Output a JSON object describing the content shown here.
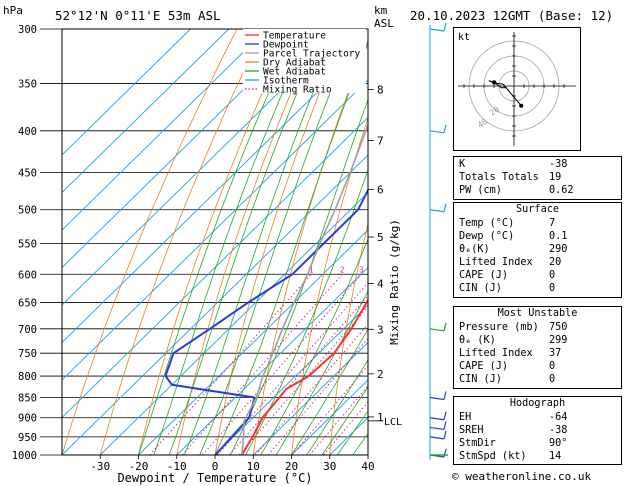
{
  "header": {
    "p_unit": "hPa",
    "station": "52°12'N  0°11'E  53m  ASL",
    "alt_unit_top": "km",
    "alt_unit_bottom": "ASL",
    "datetime": "20.10.2023  12GMT  (Base: 12)"
  },
  "chart_data": {
    "type": "line",
    "xlabel": "Dewpoint / Temperature (°C)",
    "ylabel": "hPa",
    "right_label": "Mixing Ratio (g/kg)",
    "xlim": [
      -40,
      40
    ],
    "ylim": [
      1000,
      300
    ],
    "x_ticks": [
      "-30",
      "-20",
      "-10",
      "0",
      "10",
      "20",
      "30",
      "40"
    ],
    "p_levels": [
      300,
      350,
      400,
      450,
      500,
      550,
      600,
      650,
      700,
      750,
      800,
      850,
      900,
      950,
      1000
    ],
    "p_labels": [
      "300",
      "350",
      "400",
      "450",
      "500",
      "550",
      "600",
      "650",
      "700",
      "750",
      "800",
      "850",
      "900",
      "950",
      "1000"
    ],
    "km_ticks": [
      {
        "km": "1",
        "p": 898
      },
      {
        "km": "2",
        "p": 795
      },
      {
        "km": "3",
        "p": 701
      },
      {
        "km": "4",
        "p": 616
      },
      {
        "km": "5",
        "p": 540
      },
      {
        "km": "6",
        "p": 472
      },
      {
        "km": "7",
        "p": 411
      },
      {
        "km": "8",
        "p": 356
      }
    ],
    "lcl_label": "LCL",
    "lcl_p": 908,
    "mixing_ratio_labels": [
      "1",
      "2",
      "3",
      "4",
      "5",
      "6",
      "8",
      "10",
      "15",
      "20",
      "25"
    ],
    "mixing_ratio_values": [
      1,
      2,
      3,
      4,
      5,
      6,
      8,
      10,
      15,
      20,
      25
    ],
    "mixing_ratio_label_p": 600,
    "legend": [
      "Temperature",
      "Dewpoint",
      "Parcel Trajectory",
      "Dry Adiabat",
      "Wet Adiabat",
      "Isotherm",
      "Mixing Ratio"
    ],
    "legend_placement": "top-right",
    "colors": {
      "temperature": "#ff3030",
      "dewpoint": "#2a3bd8",
      "parcel": "#a0a0a0",
      "dry_adiabat": "#e8821e",
      "wet_adiabat": "#26a626",
      "isotherm": "#1aa5e0",
      "mixing_ratio": "#e0108a"
    },
    "series": [
      {
        "name": "Temperature",
        "points": [
          [
            7,
            1000
          ],
          [
            5,
            950
          ],
          [
            2.5,
            900
          ],
          [
            1.5,
            850
          ],
          [
            1,
            830
          ],
          [
            3.5,
            800
          ],
          [
            4,
            750
          ],
          [
            2,
            700
          ],
          [
            -1,
            650
          ],
          [
            -4.5,
            600
          ],
          [
            -8.5,
            550
          ],
          [
            -13.5,
            500
          ],
          [
            -19.5,
            450
          ],
          [
            -26,
            400
          ],
          [
            -33,
            350
          ],
          [
            -41,
            300
          ]
        ]
      },
      {
        "name": "Dewpoint",
        "points": [
          [
            0.1,
            1000
          ],
          [
            -0.5,
            950
          ],
          [
            -1,
            900
          ],
          [
            -5,
            850
          ],
          [
            -30,
            820
          ],
          [
            -34,
            800
          ],
          [
            -38,
            750
          ],
          [
            -35,
            700
          ],
          [
            -32,
            650
          ],
          [
            -28,
            600
          ],
          [
            -28,
            550
          ],
          [
            -28,
            500
          ],
          [
            -33,
            450
          ],
          [
            -44,
            400
          ],
          [
            -42,
            350
          ],
          [
            -45,
            300
          ]
        ]
      },
      {
        "name": "Parcel Trajectory",
        "points": [
          [
            7,
            1000
          ],
          [
            2.6,
            950
          ],
          [
            -1.5,
            908
          ],
          [
            -4.5,
            850
          ],
          [
            -8.5,
            800
          ],
          [
            -12,
            750
          ],
          [
            -16,
            700
          ],
          [
            -20,
            650
          ],
          [
            -24,
            600
          ],
          [
            -29,
            550
          ],
          [
            -34,
            500
          ],
          [
            -40,
            450
          ],
          [
            -47,
            400
          ],
          [
            -55,
            350
          ],
          [
            -64,
            300
          ]
        ]
      }
    ]
  },
  "hodograph": {
    "label": "kt",
    "ring_labels": [
      "20",
      "40"
    ],
    "trace_kt": [
      [
        -8,
        -2
      ],
      [
        -14,
        -2
      ],
      [
        -22,
        4
      ],
      [
        -28,
        6
      ],
      [
        -26,
        5
      ],
      [
        -20,
        3
      ],
      [
        -12,
        2
      ]
    ],
    "mean_kt": [
      8,
      -22
    ]
  },
  "winds": [
    {
      "p": 1000,
      "type": "flag"
    },
    {
      "p": 950,
      "type": "barb"
    },
    {
      "p": 925,
      "type": "barb"
    },
    {
      "p": 900,
      "type": "barb"
    },
    {
      "p": 850,
      "type": "barb"
    },
    {
      "p": 700,
      "type": "barb"
    },
    {
      "p": 500,
      "type": "barb"
    },
    {
      "p": 400,
      "type": "barb"
    },
    {
      "p": 300,
      "type": "barb"
    }
  ],
  "indices": {
    "rows": [
      {
        "label": "K",
        "value": "-38"
      },
      {
        "label": "Totals Totals",
        "value": "19"
      },
      {
        "label": "PW (cm)",
        "value": "0.62"
      }
    ]
  },
  "surface": {
    "title": "Surface",
    "rows": [
      {
        "label": "Temp (°C)",
        "value": "7"
      },
      {
        "label": "Dewp (°C)",
        "value": "0.1"
      },
      {
        "label": "θₑ(K)",
        "value": "290"
      },
      {
        "label": "Lifted Index",
        "value": "20"
      },
      {
        "label": "CAPE (J)",
        "value": "0"
      },
      {
        "label": "CIN (J)",
        "value": "0"
      }
    ]
  },
  "most_unstable": {
    "title": "Most Unstable",
    "rows": [
      {
        "label": "Pressure (mb)",
        "value": "750"
      },
      {
        "label": "θₑ (K)",
        "value": "299"
      },
      {
        "label": "Lifted Index",
        "value": "37"
      },
      {
        "label": "CAPE (J)",
        "value": "0"
      },
      {
        "label": "CIN (J)",
        "value": "0"
      }
    ]
  },
  "hodograph_stats": {
    "title": "Hodograph",
    "rows": [
      {
        "label": "EH",
        "value": "-64"
      },
      {
        "label": "SREH",
        "value": "-38"
      },
      {
        "label": "StmDir",
        "value": "90°"
      },
      {
        "label": "StmSpd (kt)",
        "value": "14"
      }
    ]
  },
  "footer": {
    "copyright": "© weatheronline.co.uk"
  }
}
